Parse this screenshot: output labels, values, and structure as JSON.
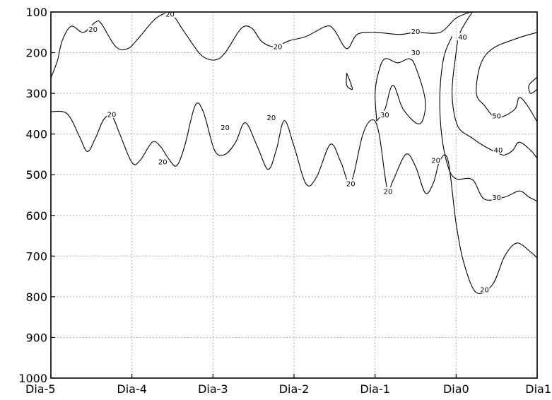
{
  "chart_data": {
    "type": "contour",
    "title": "",
    "xlabel": "",
    "ylabel": "",
    "x_categories": [
      "Dia-5",
      "Dia-4",
      "Dia-3",
      "Dia-2",
      "Dia-1",
      "Dia0",
      "Dia1"
    ],
    "y_ticks": [
      100,
      200,
      300,
      400,
      500,
      600,
      700,
      800,
      900,
      1000
    ],
    "y_inverted": true,
    "ylim": [
      100,
      1000
    ],
    "xlim": [
      -5,
      1
    ],
    "grid": true,
    "contour_levels": [
      20,
      30,
      40,
      50
    ],
    "contours": [
      {
        "level": 20,
        "points": [
          [
            -5,
            262
          ],
          [
            -4.92,
            220
          ],
          [
            -4.86,
            170
          ],
          [
            -4.75,
            135
          ],
          [
            -4.6,
            150
          ],
          [
            -4.45,
            125
          ],
          [
            -4.38,
            128
          ],
          [
            -4.2,
            185
          ],
          [
            -4.05,
            190
          ],
          [
            -3.9,
            160
          ],
          [
            -3.7,
            115
          ],
          [
            -3.52,
            105
          ],
          [
            -3.35,
            150
          ],
          [
            -3.15,
            205
          ],
          [
            -2.98,
            218
          ],
          [
            -2.85,
            200
          ],
          [
            -2.65,
            140
          ],
          [
            -2.52,
            140
          ],
          [
            -2.4,
            172
          ],
          [
            -2.25,
            185
          ],
          [
            -2.05,
            170
          ],
          [
            -1.85,
            160
          ],
          [
            -1.6,
            135
          ],
          [
            -1.5,
            145
          ],
          [
            -1.35,
            190
          ],
          [
            -1.22,
            155
          ],
          [
            -1.0,
            150
          ],
          [
            -0.7,
            155
          ],
          [
            -0.5,
            150
          ],
          [
            -0.2,
            150
          ],
          [
            0,
            115
          ],
          [
            0.18,
            100
          ]
        ]
      },
      {
        "level": 20,
        "points": [
          [
            -5,
            345
          ],
          [
            -4.8,
            350
          ],
          [
            -4.65,
            405
          ],
          [
            -4.55,
            443
          ],
          [
            -4.45,
            410
          ],
          [
            -4.35,
            365
          ],
          [
            -4.25,
            355
          ],
          [
            -4.15,
            400
          ],
          [
            -4.0,
            470
          ],
          [
            -3.9,
            465
          ],
          [
            -3.75,
            420
          ],
          [
            -3.65,
            430
          ],
          [
            -3.55,
            460
          ],
          [
            -3.45,
            478
          ],
          [
            -3.35,
            430
          ],
          [
            -3.22,
            330
          ],
          [
            -3.12,
            345
          ],
          [
            -2.98,
            440
          ],
          [
            -2.85,
            450
          ],
          [
            -2.72,
            420
          ],
          [
            -2.6,
            372
          ],
          [
            -2.45,
            432
          ],
          [
            -2.32,
            487
          ],
          [
            -2.22,
            440
          ],
          [
            -2.12,
            367
          ],
          [
            -2.0,
            430
          ],
          [
            -1.85,
            523
          ],
          [
            -1.72,
            505
          ],
          [
            -1.55,
            425
          ],
          [
            -1.42,
            470
          ],
          [
            -1.3,
            520
          ],
          [
            -1.15,
            400
          ],
          [
            -1.03,
            365
          ],
          [
            -0.95,
            400
          ],
          [
            -0.85,
            535
          ],
          [
            -0.78,
            515
          ],
          [
            -0.62,
            450
          ],
          [
            -0.5,
            480
          ],
          [
            -0.38,
            545
          ],
          [
            -0.28,
            520
          ],
          [
            -0.2,
            465
          ],
          [
            -0.1,
            465
          ],
          [
            0.0,
            620
          ],
          [
            0.1,
            720
          ],
          [
            0.25,
            790
          ],
          [
            0.45,
            770
          ],
          [
            0.6,
            700
          ],
          [
            0.75,
            668
          ],
          [
            0.92,
            690
          ],
          [
            1.0,
            705
          ]
        ]
      },
      {
        "level": 30,
        "points": [
          [
            -0.98,
            368
          ],
          [
            -1.0,
            300
          ],
          [
            -0.96,
            250
          ],
          [
            -0.88,
            215
          ],
          [
            -0.72,
            225
          ],
          [
            -0.58,
            215
          ],
          [
            -0.5,
            235
          ],
          [
            -0.38,
            320
          ],
          [
            -0.45,
            375
          ],
          [
            -0.65,
            340
          ],
          [
            -0.78,
            280
          ],
          [
            -0.88,
            340
          ],
          [
            -0.98,
            368
          ]
        ]
      },
      {
        "level": 30,
        "points": [
          [
            -1.35,
            250
          ],
          [
            -1.31,
            270
          ],
          [
            -1.28,
            290
          ],
          [
            -1.35,
            280
          ],
          [
            -1.35,
            250
          ]
        ]
      },
      {
        "level": 30,
        "points": [
          [
            -0.05,
            160
          ],
          [
            -0.15,
            210
          ],
          [
            -0.2,
            300
          ],
          [
            -0.18,
            400
          ],
          [
            -0.1,
            480
          ],
          [
            0.0,
            510
          ],
          [
            0.2,
            512
          ],
          [
            0.35,
            560
          ],
          [
            0.6,
            555
          ],
          [
            0.78,
            540
          ],
          [
            0.9,
            555
          ],
          [
            1.0,
            565
          ]
        ]
      },
      {
        "level": 40,
        "points": [
          [
            0.2,
            100
          ],
          [
            0.05,
            150
          ],
          [
            0.0,
            200
          ],
          [
            -0.05,
            300
          ],
          [
            0.02,
            380
          ],
          [
            0.2,
            410
          ],
          [
            0.35,
            430
          ],
          [
            0.55,
            450
          ],
          [
            0.62,
            450
          ],
          [
            0.7,
            440
          ],
          [
            0.78,
            420
          ],
          [
            0.92,
            440
          ],
          [
            1.0,
            460
          ]
        ]
      },
      {
        "level": 50,
        "points": [
          [
            1.0,
            150
          ],
          [
            0.75,
            165
          ],
          [
            0.45,
            190
          ],
          [
            0.3,
            230
          ],
          [
            0.25,
            300
          ],
          [
            0.35,
            330
          ],
          [
            0.5,
            360
          ],
          [
            0.72,
            340
          ],
          [
            0.78,
            310
          ],
          [
            0.88,
            330
          ],
          [
            1.0,
            370
          ]
        ]
      },
      {
        "level": 50,
        "points": [
          [
            1.0,
            260
          ],
          [
            0.9,
            280
          ],
          [
            0.92,
            300
          ],
          [
            1.0,
            290
          ]
        ]
      }
    ],
    "contour_labels": [
      {
        "text": "20",
        "x": -4.48,
        "y": 143
      },
      {
        "text": "20",
        "x": -3.53,
        "y": 105
      },
      {
        "text": "20",
        "x": -2.2,
        "y": 185
      },
      {
        "text": "20",
        "x": -0.5,
        "y": 148
      },
      {
        "text": "20",
        "x": -4.25,
        "y": 352
      },
      {
        "text": "20",
        "x": -3.62,
        "y": 468
      },
      {
        "text": "20",
        "x": -2.85,
        "y": 384
      },
      {
        "text": "20",
        "x": -2.28,
        "y": 360
      },
      {
        "text": "20",
        "x": -1.3,
        "y": 522
      },
      {
        "text": "20",
        "x": -0.84,
        "y": 541
      },
      {
        "text": "20",
        "x": -0.25,
        "y": 465
      },
      {
        "text": "20",
        "x": 0.35,
        "y": 783
      },
      {
        "text": "30",
        "x": -0.5,
        "y": 200
      },
      {
        "text": "30",
        "x": -0.88,
        "y": 353
      },
      {
        "text": "30",
        "x": 0.5,
        "y": 556
      },
      {
        "text": "40",
        "x": 0.08,
        "y": 162
      },
      {
        "text": "40",
        "x": 0.52,
        "y": 440
      },
      {
        "text": "50",
        "x": 0.5,
        "y": 355
      }
    ]
  }
}
